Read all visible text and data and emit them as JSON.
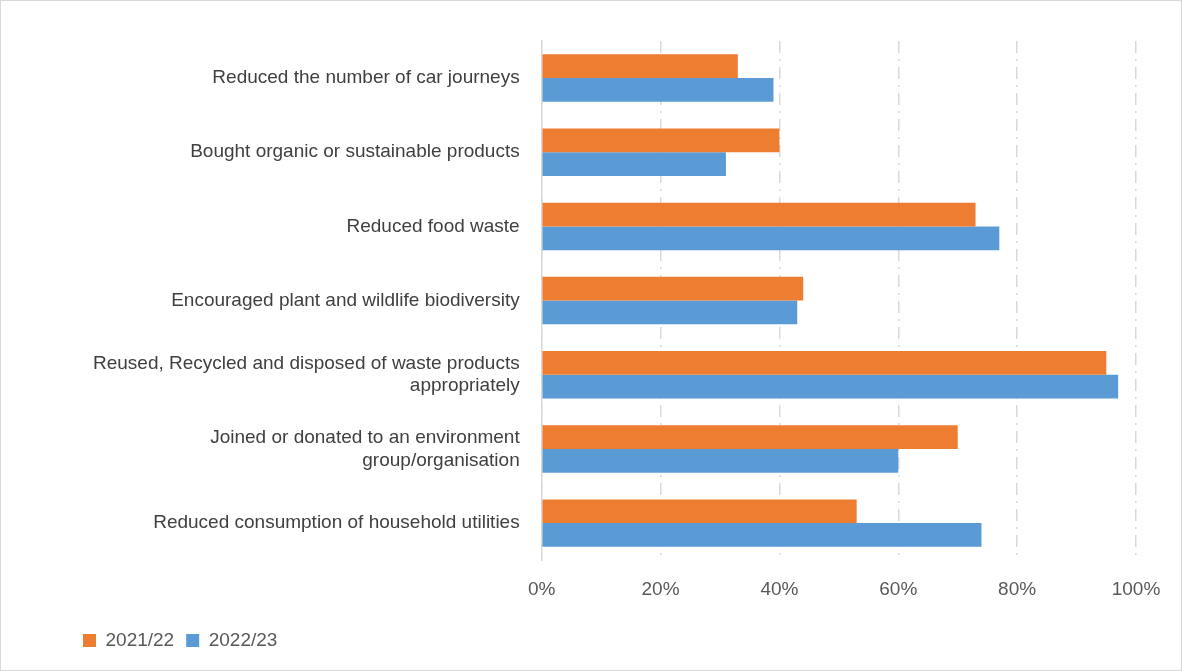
{
  "chart_data": {
    "type": "bar",
    "orientation": "horizontal",
    "categories": [
      "Reduced the number of car journeys",
      "Bought organic or sustainable products",
      "Reduced food waste",
      "Encouraged plant and wildlife biodiversity",
      "Reused, Recycled and disposed of waste products appropriately",
      "Joined or donated to an environment group/organisation",
      "Reduced consumption of household utilities"
    ],
    "series": [
      {
        "name": "2021/22",
        "color": "#ed7d31",
        "values": [
          33,
          40,
          73,
          44,
          95,
          70,
          53
        ]
      },
      {
        "name": "2022/23",
        "color": "#5b9bd5",
        "values": [
          39,
          31,
          77,
          43,
          97,
          60,
          74
        ]
      }
    ],
    "xlim": [
      0,
      100
    ],
    "xticks": [
      {
        "value": 0,
        "label": "0%"
      },
      {
        "value": 20,
        "label": "20%"
      },
      {
        "value": 40,
        "label": "40%"
      },
      {
        "value": 60,
        "label": "60%"
      },
      {
        "value": 80,
        "label": "80%"
      },
      {
        "value": 100,
        "label": "100%"
      }
    ],
    "grid": "x",
    "legend": "bottom"
  }
}
